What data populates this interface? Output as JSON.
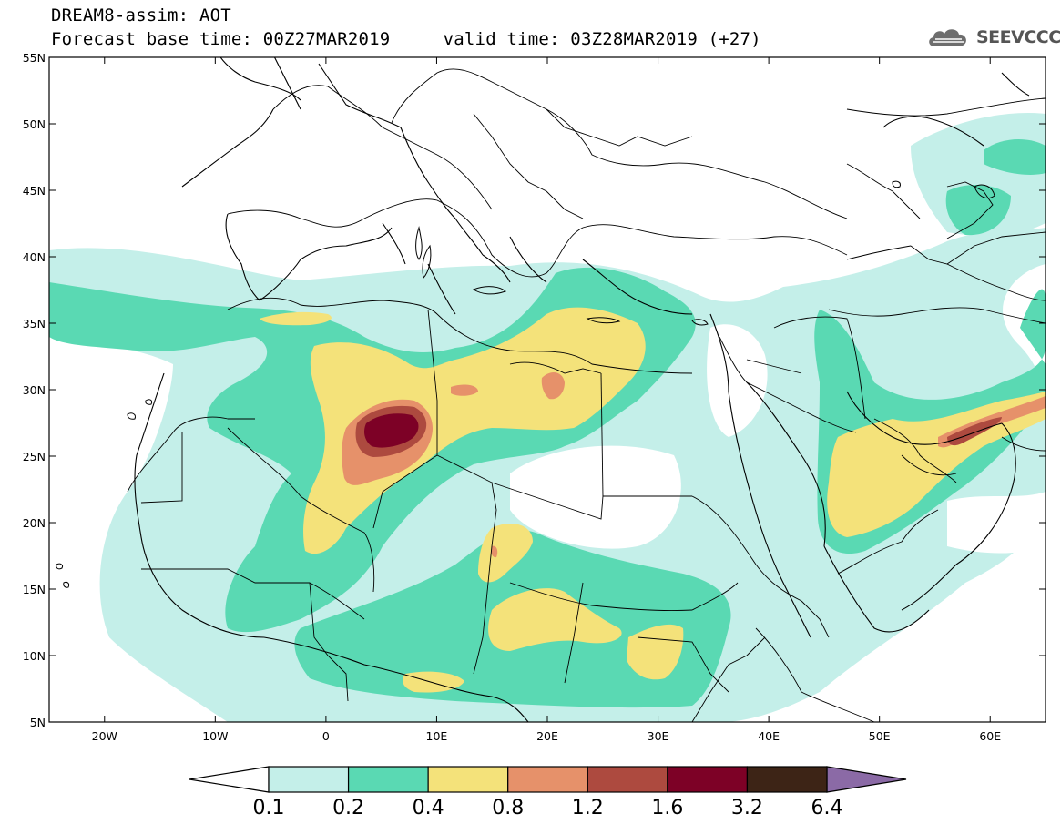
{
  "header": {
    "model_title": "DREAM8-assim: AOT",
    "forecast_line": "Forecast base time: 00Z27MAR2019     valid time: 03Z28MAR2019 (+27)"
  },
  "logo": {
    "text": "SEEVCCC",
    "icon": "cloud-icon"
  },
  "map": {
    "lat_labels": [
      "55N",
      "50N",
      "45N",
      "40N",
      "35N",
      "30N",
      "25N",
      "20N",
      "15N",
      "10N",
      "5N"
    ],
    "lon_labels": [
      "20W",
      "10W",
      "0",
      "10E",
      "20E",
      "30E",
      "40E",
      "50E",
      "60E"
    ],
    "lon_range": [
      -25,
      65
    ],
    "lat_range": [
      5,
      55
    ]
  },
  "colorbar": {
    "levels": [
      "0.1",
      "0.2",
      "0.4",
      "0.8",
      "1.2",
      "1.6",
      "3.2",
      "6.4"
    ],
    "colors": [
      "#ffffff",
      "#c4efe9",
      "#5ad9b3",
      "#f4e27a",
      "#e6916a",
      "#ad4a3f",
      "#7d0126",
      "#3d2416",
      "#8b6aa6"
    ]
  }
}
